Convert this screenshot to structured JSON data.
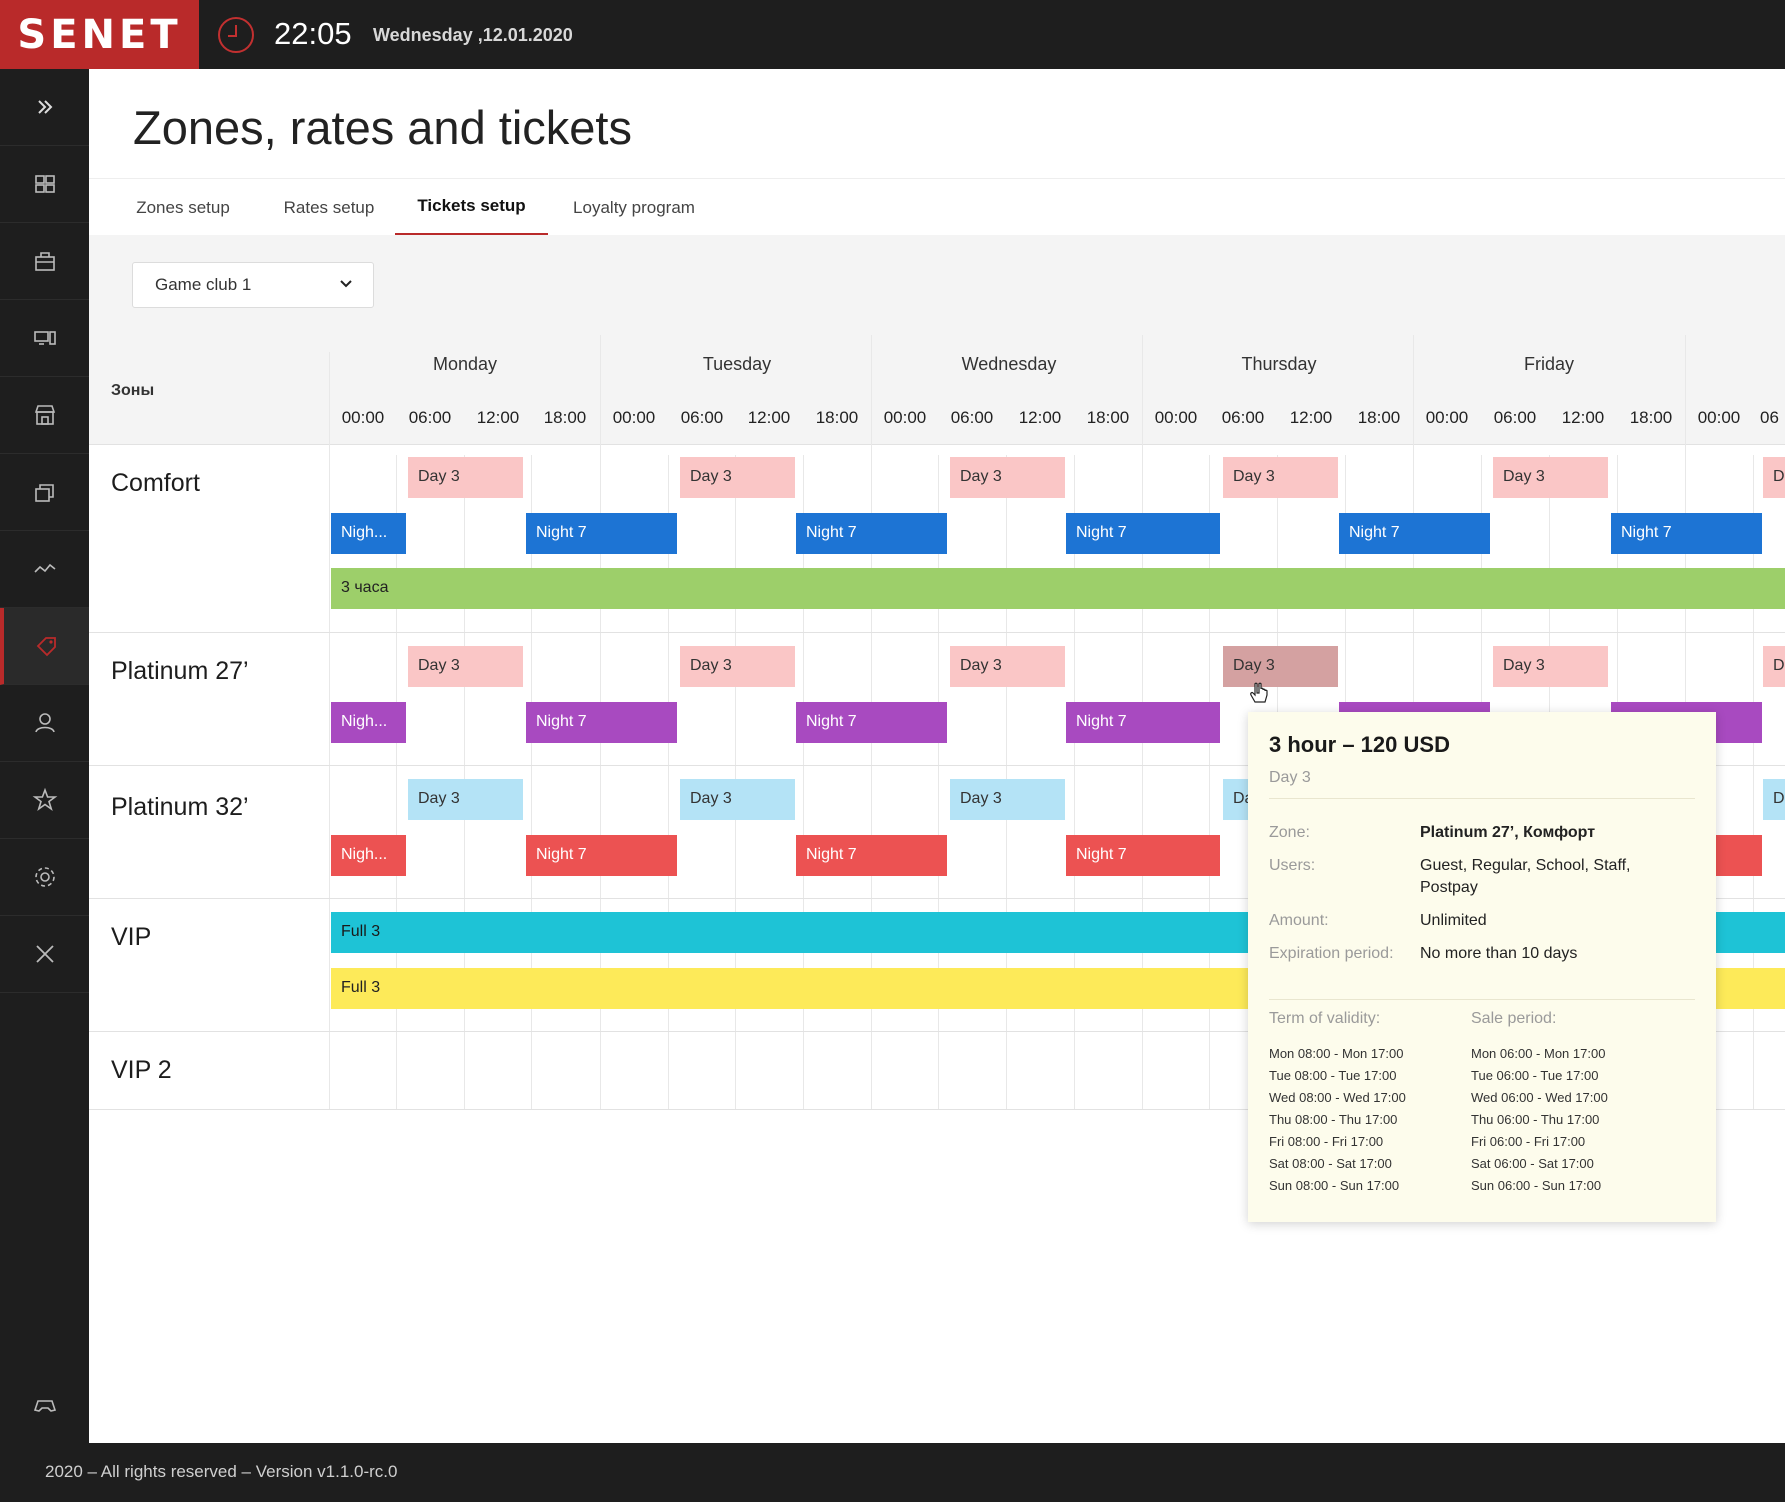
{
  "topbar": {
    "logo": "SENET",
    "time": "22:05",
    "date": "Wednesday ,12.01.2020"
  },
  "sidebar": {
    "icons": [
      "expand-icon",
      "zones-icon",
      "shop-icon",
      "devices-icon",
      "store-icon",
      "cards-icon",
      "stats-icon",
      "tickets-icon",
      "users-icon",
      "star-icon",
      "settings-icon",
      "tools-icon",
      "gamepad-icon"
    ],
    "active": "tickets-icon"
  },
  "page": {
    "title": "Zones, rates and tickets"
  },
  "tabs": [
    {
      "label": "Zones setup"
    },
    {
      "label": "Rates setup"
    },
    {
      "label": "Tickets setup"
    },
    {
      "label": "Loyalty program"
    }
  ],
  "filter": {
    "club": "Game club 1"
  },
  "grid": {
    "zones_label": "Зоны",
    "days": [
      "Monday",
      "Tuesday",
      "Wednesday",
      "Thursday",
      "Friday"
    ],
    "times": [
      "00:00",
      "06:00",
      "12:00",
      "18:00",
      "00:00",
      "06:00",
      "12:00",
      "18:00",
      "00:00",
      "06:00",
      "12:00",
      "18:00",
      "00:00",
      "06:00",
      "12:00",
      "18:00",
      "00:00",
      "06:00",
      "12:00",
      "18:00",
      "00:00",
      "06"
    ]
  },
  "zones": [
    {
      "name": "Comfort"
    },
    {
      "name": "Platinum 27’"
    },
    {
      "name": "Platinum 32’"
    },
    {
      "name": "VIP"
    },
    {
      "name": "VIP 2"
    }
  ],
  "tickets": {
    "day3": "Day 3",
    "day3_cut": "D",
    "day3_cut2": "Da",
    "night_short": "Nigh...",
    "night7": "Night 7",
    "hours3": "3 часа",
    "full3": "Full 3"
  },
  "tooltip": {
    "title": "3 hour – 120 USD",
    "subtitle": "Day 3",
    "zone_label": "Zone:",
    "zone_value": "Platinum 27’, Комфорт",
    "users_label": "Users:",
    "users_value": "Guest, Regular, School, Staff, Postpay",
    "amount_label": "Amount:",
    "amount_value": "Unlimited",
    "expiration_label": "Expiration period:",
    "expiration_value": "No more than 10 days",
    "validity_label": "Term of validity:",
    "validity": [
      "Mon 08:00 - Mon 17:00",
      "Tue 08:00 - Tue 17:00",
      "Wed 08:00 - Wed 17:00",
      "Thu 08:00 - Thu 17:00",
      "Fri 08:00 - Fri 17:00",
      "Sat 08:00 - Sat 17:00",
      "Sun 08:00 - Sun 17:00"
    ],
    "sale_label": "Sale period:",
    "sale": [
      "Mon 06:00 - Mon 17:00",
      "Tue 06:00 - Tue 17:00",
      "Wed 06:00 - Wed 17:00",
      "Thu 06:00 - Thu 17:00",
      "Fri 06:00 - Fri 17:00",
      "Sat 06:00 - Sat 17:00",
      "Sun 06:00 - Sun 17:00"
    ]
  },
  "footer": {
    "text": "2020 – All rights reserved – Version v1.1.0-rc.0"
  },
  "colors": {
    "brand": "#b92a2a",
    "day_pink": "#fac6c6",
    "night_blue": "#1d74d4",
    "night_purple": "#a84ac0",
    "night_red": "#ec5252",
    "day_lightblue": "#b4e3f6",
    "hours_green": "#9dcf6a",
    "full_cyan": "#1ec3d6",
    "full_yellow": "#fdea59"
  }
}
